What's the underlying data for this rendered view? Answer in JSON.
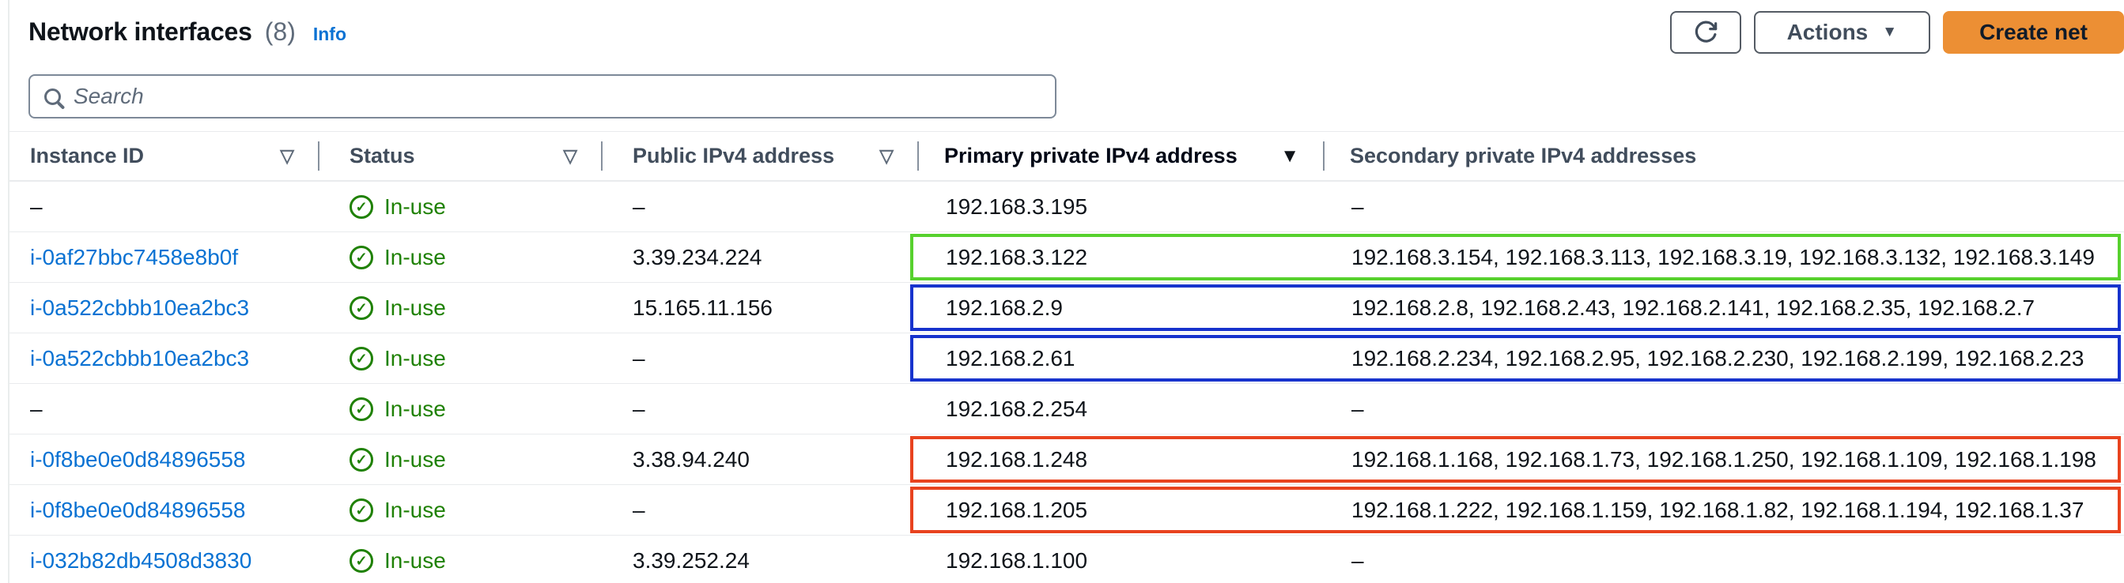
{
  "header": {
    "title": "Network interfaces",
    "count": "(8)",
    "info_label": "Info",
    "actions_label": "Actions",
    "create_label": "Create net"
  },
  "search": {
    "placeholder": "Search"
  },
  "table": {
    "columns": [
      {
        "label": "Instance ID",
        "sort": "unsorted"
      },
      {
        "label": "Status",
        "sort": "unsorted"
      },
      {
        "label": "Public IPv4 address",
        "sort": "unsorted"
      },
      {
        "label": "Primary private IPv4 address",
        "sort": "sorted-desc"
      },
      {
        "label": "Secondary private IPv4 addresses",
        "sort": "none"
      }
    ],
    "rows": [
      {
        "instance_id": "–",
        "link": false,
        "status": "In-use",
        "public_ip": "–",
        "primary_ip": "192.168.3.195",
        "secondary_ips": "–",
        "highlight": null
      },
      {
        "instance_id": "i-0af27bbc7458e8b0f",
        "link": true,
        "status": "In-use",
        "public_ip": "3.39.234.224",
        "primary_ip": "192.168.3.122",
        "secondary_ips": "192.168.3.154, 192.168.3.113, 192.168.3.19, 192.168.3.132, 192.168.3.149",
        "highlight": "green"
      },
      {
        "instance_id": "i-0a522cbbb10ea2bc3",
        "link": true,
        "status": "In-use",
        "public_ip": "15.165.11.156",
        "primary_ip": "192.168.2.9",
        "secondary_ips": "192.168.2.8, 192.168.2.43, 192.168.2.141, 192.168.2.35, 192.168.2.7",
        "highlight": "blue"
      },
      {
        "instance_id": "i-0a522cbbb10ea2bc3",
        "link": true,
        "status": "In-use",
        "public_ip": "–",
        "primary_ip": "192.168.2.61",
        "secondary_ips": "192.168.2.234, 192.168.2.95, 192.168.2.230, 192.168.2.199, 192.168.2.23",
        "highlight": "blue"
      },
      {
        "instance_id": "–",
        "link": false,
        "status": "In-use",
        "public_ip": "–",
        "primary_ip": "192.168.2.254",
        "secondary_ips": "–",
        "highlight": null
      },
      {
        "instance_id": "i-0f8be0e0d84896558",
        "link": true,
        "status": "In-use",
        "public_ip": "3.38.94.240",
        "primary_ip": "192.168.1.248",
        "secondary_ips": "192.168.1.168, 192.168.1.73, 192.168.1.250, 192.168.1.109, 192.168.1.198",
        "highlight": "red"
      },
      {
        "instance_id": "i-0f8be0e0d84896558",
        "link": true,
        "status": "In-use",
        "public_ip": "–",
        "primary_ip": "192.168.1.205",
        "secondary_ips": "192.168.1.222, 192.168.1.159, 192.168.1.82, 192.168.1.194, 192.168.1.37",
        "highlight": "red"
      },
      {
        "instance_id": "i-032b82db4508d3830",
        "link": true,
        "status": "In-use",
        "public_ip": "3.39.252.24",
        "primary_ip": "192.168.1.100",
        "secondary_ips": "–",
        "highlight": null
      }
    ]
  },
  "colors": {
    "highlight_green": "#57d12e",
    "highlight_blue": "#1733cd",
    "highlight_red": "#e8431f",
    "status_green": "#1f8104",
    "link_blue": "#0972d3",
    "accent_orange": "#ec8f34"
  }
}
